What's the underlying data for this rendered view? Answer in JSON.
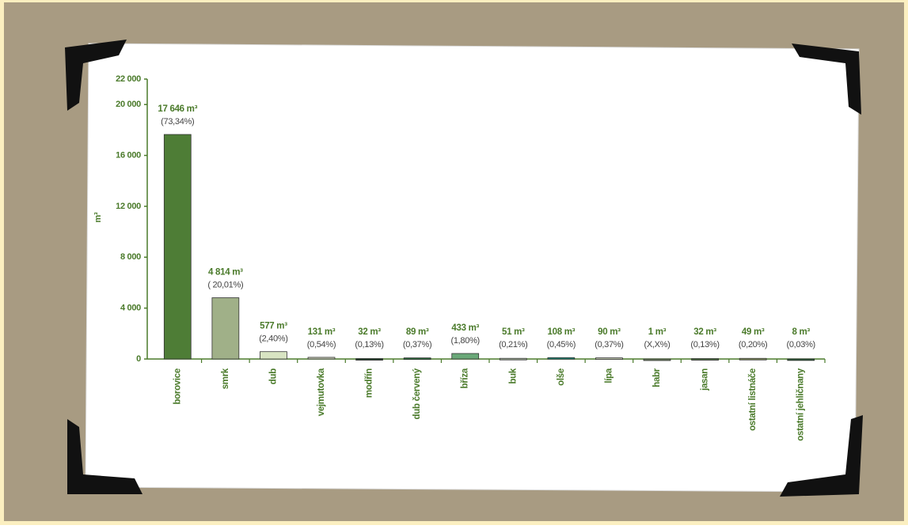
{
  "chart_data": {
    "type": "bar",
    "y_label": "m³",
    "categories": [
      "borovice",
      "smrk",
      "dub",
      "vejmutovka",
      "modřín",
      "dub červený",
      "bříza",
      "buk",
      "olše",
      "lípa",
      "habr",
      "jasan",
      "ostatní listnáče",
      "ostatní jehličnany"
    ],
    "values": [
      17646,
      4814,
      577,
      131,
      32,
      89,
      433,
      51,
      108,
      90,
      1,
      32,
      49,
      8
    ],
    "value_labels": [
      "17 646 m³",
      "4 814 m³",
      "577 m³",
      "131 m³",
      "32 m³",
      "89 m³",
      "433 m³",
      "51 m³",
      "108 m³",
      "90 m³",
      "1 m³",
      "32 m³",
      "49 m³",
      "8 m³"
    ],
    "percent_labels": [
      "(73,34%)",
      "( 20,01%)",
      "(2,40%)",
      "(0,54%)",
      "(0,13%)",
      "(0,37%)",
      "(1,80%)",
      "(0,21%)",
      "(0,45%)",
      "(0,37%)",
      "(X,X%)",
      "(0,13%)",
      "(0,20%)",
      "(0,03%)"
    ],
    "colors": [
      "#4e7d36",
      "#a0b088",
      "#d8e4c2",
      "#c9cfb8",
      "#1c3a24",
      "#2d6b3c",
      "#6aa878",
      "#9aa890",
      "#1e8070",
      "#b8c0a8",
      "#6c8060",
      "#4a6a40",
      "#7c8a58",
      "#2a5a38"
    ],
    "ylim": [
      0,
      22000
    ],
    "yticks": [
      0,
      {
        "value": 4000,
        "label": "4 000"
      },
      {
        "value": 8000,
        "label": "8 000"
      },
      {
        "value": 12000,
        "label": "12 000"
      },
      {
        "value": 16000,
        "label": "16 000"
      },
      {
        "value": 20000,
        "label": "20 000"
      },
      {
        "value": 22000,
        "label": "22 000"
      }
    ]
  }
}
